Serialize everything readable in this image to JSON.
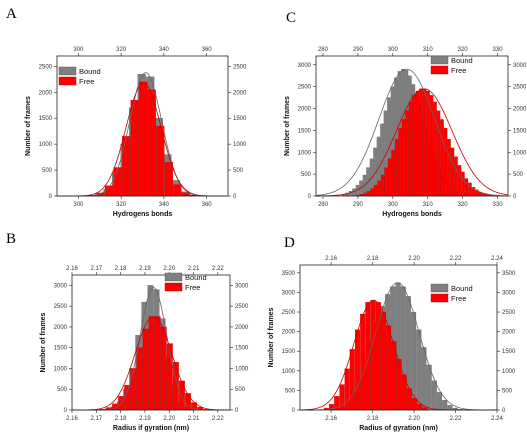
{
  "colors": {
    "bound": "#7f7f7f",
    "free": "#ff0000",
    "bound_fit": "#666666",
    "free_fit": "#cc0000"
  },
  "chart_data": [
    {
      "panel": "A",
      "type": "bar",
      "xlabel": "Hydrogens bonds",
      "ylabel": "Number of frames",
      "xlim": [
        290,
        370
      ],
      "ylim": [
        0,
        2700
      ],
      "x_ticks": [
        300,
        320,
        340,
        360
      ],
      "y_ticks": [
        0,
        500,
        1000,
        1500,
        2000,
        2500
      ],
      "top_ticks": [
        300,
        320,
        340,
        360
      ],
      "right_ticks": [
        0,
        500,
        1000,
        1500,
        2000,
        2500
      ],
      "bin_width": 4,
      "legend": "top-left",
      "series": [
        {
          "name": "Bound",
          "x": [
            306,
            310,
            314,
            318,
            322,
            326,
            330,
            334,
            338,
            342,
            346,
            350,
            354
          ],
          "values": [
            10,
            40,
            130,
            450,
            1000,
            1700,
            2350,
            2300,
            1500,
            800,
            300,
            80,
            20
          ]
        },
        {
          "name": "Free",
          "x": [
            306,
            310,
            314,
            318,
            322,
            326,
            330,
            334,
            338,
            342,
            346,
            350,
            354
          ],
          "values": [
            15,
            60,
            200,
            550,
            1150,
            1850,
            2200,
            2050,
            1350,
            650,
            220,
            60,
            15
          ]
        }
      ],
      "fits": [
        {
          "name": "Bound",
          "mean": 331.5,
          "sd": 7.5,
          "peak": 2380
        },
        {
          "name": "Free",
          "mean": 330.5,
          "sd": 8.2,
          "peak": 2180
        }
      ]
    },
    {
      "panel": "C",
      "type": "bar",
      "xlabel": "Hydrogens bonds",
      "ylabel": "Number of frames",
      "xlim": [
        278,
        333
      ],
      "ylim": [
        0,
        3200
      ],
      "x_ticks": [
        280,
        290,
        300,
        310,
        320,
        330
      ],
      "y_ticks": [
        0,
        500,
        1000,
        1500,
        2000,
        2500,
        3000
      ],
      "top_ticks": [
        280,
        290,
        300,
        310,
        320,
        330
      ],
      "right_ticks": [
        0,
        500,
        1000,
        1500,
        2000,
        2500,
        3000
      ],
      "bin_width": 1,
      "legend": "top-right",
      "series": [
        {
          "name": "Bound",
          "x": [
            286,
            287,
            288,
            289,
            290,
            291,
            292,
            293,
            294,
            295,
            296,
            297,
            298,
            299,
            300,
            301,
            302,
            303,
            304,
            305,
            306,
            307,
            308,
            309,
            310,
            311,
            312,
            313,
            314,
            315,
            316,
            317,
            318,
            319,
            320,
            321,
            322,
            323,
            324,
            325,
            326
          ],
          "values": [
            40,
            70,
            110,
            170,
            250,
            350,
            480,
            650,
            850,
            1100,
            1350,
            1650,
            1950,
            2250,
            2500,
            2700,
            2850,
            2900,
            2880,
            2750,
            2550,
            2350,
            2100,
            1800,
            1550,
            1300,
            1050,
            850,
            650,
            500,
            380,
            280,
            200,
            140,
            100,
            70,
            45,
            30,
            20,
            10,
            5
          ]
        },
        {
          "name": "Free",
          "x": [
            290,
            291,
            292,
            293,
            294,
            295,
            296,
            297,
            298,
            299,
            300,
            301,
            302,
            303,
            304,
            305,
            306,
            307,
            308,
            309,
            310,
            311,
            312,
            313,
            314,
            315,
            316,
            317,
            318,
            319,
            320,
            321,
            322,
            323,
            324,
            325,
            326,
            327,
            328,
            329,
            330
          ],
          "values": [
            20,
            40,
            70,
            110,
            170,
            250,
            350,
            480,
            650,
            850,
            1050,
            1300,
            1550,
            1750,
            1950,
            2150,
            2300,
            2400,
            2450,
            2450,
            2400,
            2300,
            2150,
            1950,
            1750,
            1550,
            1300,
            1100,
            900,
            700,
            550,
            400,
            300,
            200,
            140,
            90,
            60,
            40,
            25,
            15,
            10
          ]
        }
      ],
      "fits": [
        {
          "name": "Bound",
          "mean": 304,
          "sd": 8,
          "peak": 2900
        },
        {
          "name": "Free",
          "mean": 309,
          "sd": 8,
          "peak": 2450
        }
      ]
    },
    {
      "panel": "B",
      "type": "bar",
      "xlabel": "Radius if gyration (nm)",
      "ylabel": "Number of frames",
      "xlim": [
        2.16,
        2.225
      ],
      "ylim": [
        0,
        3250
      ],
      "x_ticks": [
        2.16,
        2.17,
        2.18,
        2.19,
        2.2,
        2.21,
        2.22
      ],
      "y_ticks": [
        0,
        500,
        1000,
        1500,
        2000,
        2500,
        3000
      ],
      "top_ticks": [
        2.16,
        2.17,
        2.18,
        2.19,
        2.2,
        2.21,
        2.22
      ],
      "right_ticks": [
        0,
        500,
        1000,
        1500,
        2000,
        2500,
        3000
      ],
      "bin_width": 0.0025,
      "legend": "top-right",
      "series": [
        {
          "name": "Bound",
          "x": [
            2.1725,
            2.175,
            2.1775,
            2.18,
            2.1825,
            2.185,
            2.1875,
            2.19,
            2.1925,
            2.195,
            2.1975,
            2.2,
            2.2025,
            2.205,
            2.2075,
            2.21
          ],
          "values": [
            10,
            30,
            80,
            200,
            500,
            1000,
            1800,
            2600,
            3000,
            2900,
            2200,
            1300,
            600,
            200,
            60,
            15
          ]
        },
        {
          "name": "Free",
          "x": [
            2.1725,
            2.175,
            2.1775,
            2.18,
            2.1825,
            2.185,
            2.1875,
            2.19,
            2.1925,
            2.195,
            2.1975,
            2.2,
            2.2025,
            2.205,
            2.2075,
            2.21,
            2.2125,
            2.215
          ],
          "values": [
            20,
            60,
            150,
            330,
            600,
            1000,
            1500,
            1950,
            2250,
            2250,
            2000,
            1600,
            1150,
            700,
            400,
            180,
            70,
            20
          ]
        }
      ],
      "fits": [
        {
          "name": "Bound",
          "mean": 2.1935,
          "sd": 0.0055,
          "peak": 2950
        },
        {
          "name": "Free",
          "mean": 2.1935,
          "sd": 0.0075,
          "peak": 2250
        }
      ]
    },
    {
      "panel": "D",
      "type": "bar",
      "xlabel": "Radius of gyration (nm)",
      "ylabel": "Number of frames",
      "xlim": [
        2.145,
        2.24
      ],
      "ylim": [
        0,
        3700
      ],
      "x_ticks": [
        2.16,
        2.18,
        2.2,
        2.22,
        2.24
      ],
      "y_ticks": [
        0,
        500,
        1000,
        1500,
        2000,
        2500,
        3000,
        3500
      ],
      "top_ticks": [
        2.16,
        2.18,
        2.2,
        2.22,
        2.24
      ],
      "right_ticks": [
        0,
        500,
        1000,
        1500,
        2000,
        2500,
        3000,
        3500
      ],
      "bin_width": 0.0025,
      "legend": "top-right",
      "series": [
        {
          "name": "Bound",
          "x": [
            2.165,
            2.1675,
            2.17,
            2.1725,
            2.175,
            2.1775,
            2.18,
            2.1825,
            2.185,
            2.1875,
            2.19,
            2.1925,
            2.195,
            2.1975,
            2.2,
            2.2025,
            2.205,
            2.2075,
            2.21,
            2.2125,
            2.215,
            2.2175,
            2.22,
            2.2225
          ],
          "values": [
            40,
            100,
            230,
            450,
            800,
            1250,
            1750,
            2250,
            2650,
            2950,
            3150,
            3250,
            3150,
            2900,
            2500,
            2050,
            1600,
            1150,
            750,
            450,
            250,
            120,
            50,
            20
          ]
        },
        {
          "name": "Free",
          "x": [
            2.1575,
            2.16,
            2.1625,
            2.165,
            2.1675,
            2.17,
            2.1725,
            2.175,
            2.1775,
            2.18,
            2.1825,
            2.185,
            2.1875,
            2.19,
            2.1925,
            2.195,
            2.1975,
            2.2,
            2.2025,
            2.205
          ],
          "values": [
            50,
            150,
            350,
            650,
            1050,
            1550,
            2050,
            2450,
            2750,
            2800,
            2750,
            2500,
            2150,
            1750,
            1300,
            900,
            550,
            300,
            150,
            60
          ]
        }
      ],
      "fits": [
        {
          "name": "Bound",
          "mean": 2.192,
          "sd": 0.0105,
          "peak": 3250
        },
        {
          "name": "Free",
          "mean": 2.1805,
          "sd": 0.0095,
          "peak": 2800
        }
      ]
    }
  ]
}
